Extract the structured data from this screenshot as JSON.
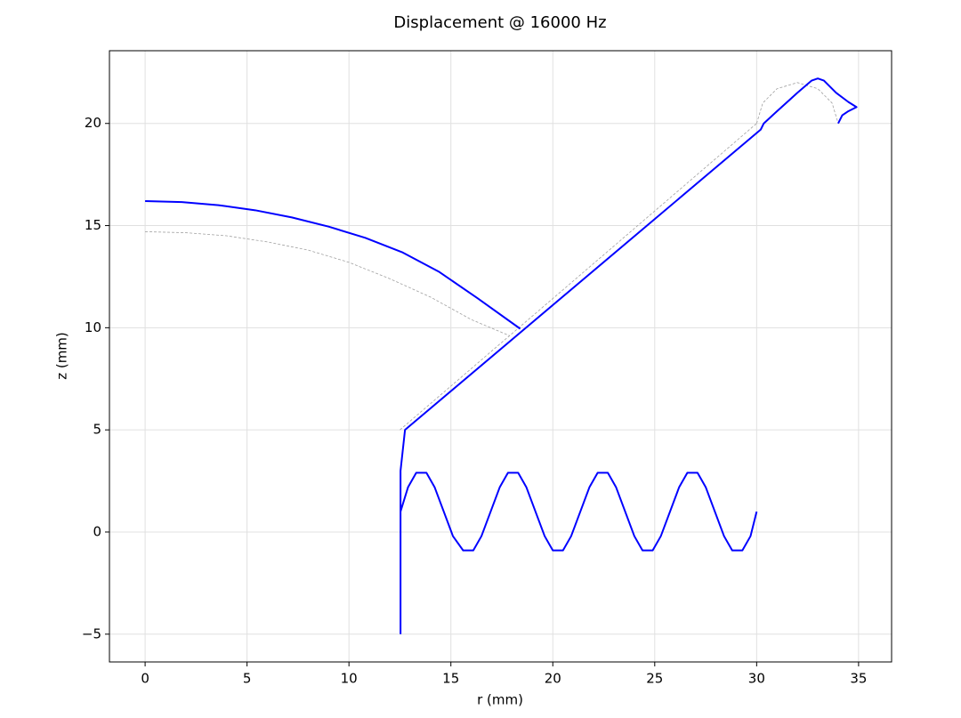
{
  "chart_data": {
    "type": "line",
    "title": "Displacement @ 16000 Hz",
    "x_label": "r (mm)",
    "y_label": "z (mm)",
    "xlim": [
      -1.75,
      36.62
    ],
    "ylim": [
      -6.36,
      23.56
    ],
    "xticks": [
      0,
      5,
      10,
      15,
      20,
      25,
      30,
      35
    ],
    "yticks": [
      {
        "value": -5,
        "label": "−5"
      },
      0,
      5,
      10,
      15,
      20
    ],
    "grid": true,
    "series": [
      {
        "color": "#a0a0a0",
        "linestyle": "dashed",
        "linewidth": 0.8,
        "x": [
          0,
          2,
          4,
          6,
          8,
          10,
          12,
          14,
          16,
          17.9,
          null,
          12.5,
          30,
          null,
          30,
          30.3,
          31,
          32,
          33,
          33.7,
          34
        ],
        "values": [
          14.7,
          14.65,
          14.5,
          14.2,
          13.8,
          13.2,
          12.4,
          11.5,
          10.4,
          9.6,
          null,
          5,
          20,
          null,
          20,
          21,
          21.7,
          22,
          21.7,
          21,
          20
        ]
      },
      {
        "color": "#0000ff",
        "linestyle": "solid",
        "linewidth": 2,
        "x": [
          0,
          1.8,
          3.6,
          5.4,
          7.2,
          9,
          10.8,
          12.6,
          14.4,
          16.3,
          18.4,
          null,
          12.53,
          12.53,
          12.75,
          30.2,
          30.35,
          31,
          32,
          32.7,
          33,
          33.3,
          33.9,
          34.5,
          34.9,
          34.5,
          34.2,
          34.0,
          null,
          12.53,
          12.9,
          13.3,
          13.8,
          14.2,
          15.1,
          15.6,
          16.1,
          16.5,
          17.4,
          17.8,
          18.3,
          18.7,
          19.6,
          20,
          20.5,
          20.9,
          21.8,
          22.2,
          22.7,
          23.1,
          24,
          24.4,
          24.9,
          25.3,
          26.2,
          26.6,
          27.1,
          27.5,
          28.4,
          28.8,
          29.3,
          29.7,
          30
        ],
        "values": [
          16.2,
          16.15,
          16.0,
          15.75,
          15.4,
          14.95,
          14.4,
          13.7,
          12.75,
          11.45,
          9.95,
          null,
          -5,
          3.0,
          5.0,
          19.7,
          20.0,
          20.6,
          21.5,
          22.1,
          22.2,
          22.1,
          21.5,
          21.05,
          20.8,
          20.6,
          20.4,
          20.0,
          null,
          1.0,
          2.2,
          2.9,
          2.9,
          2.2,
          -0.2,
          -0.9,
          -0.9,
          -0.2,
          2.2,
          2.9,
          2.9,
          2.2,
          -0.2,
          -0.9,
          -0.9,
          -0.2,
          2.2,
          2.9,
          2.9,
          2.2,
          -0.2,
          -0.9,
          -0.9,
          -0.2,
          2.2,
          2.9,
          2.9,
          2.2,
          -0.2,
          -0.9,
          -0.9,
          -0.2,
          1.0
        ]
      }
    ]
  }
}
